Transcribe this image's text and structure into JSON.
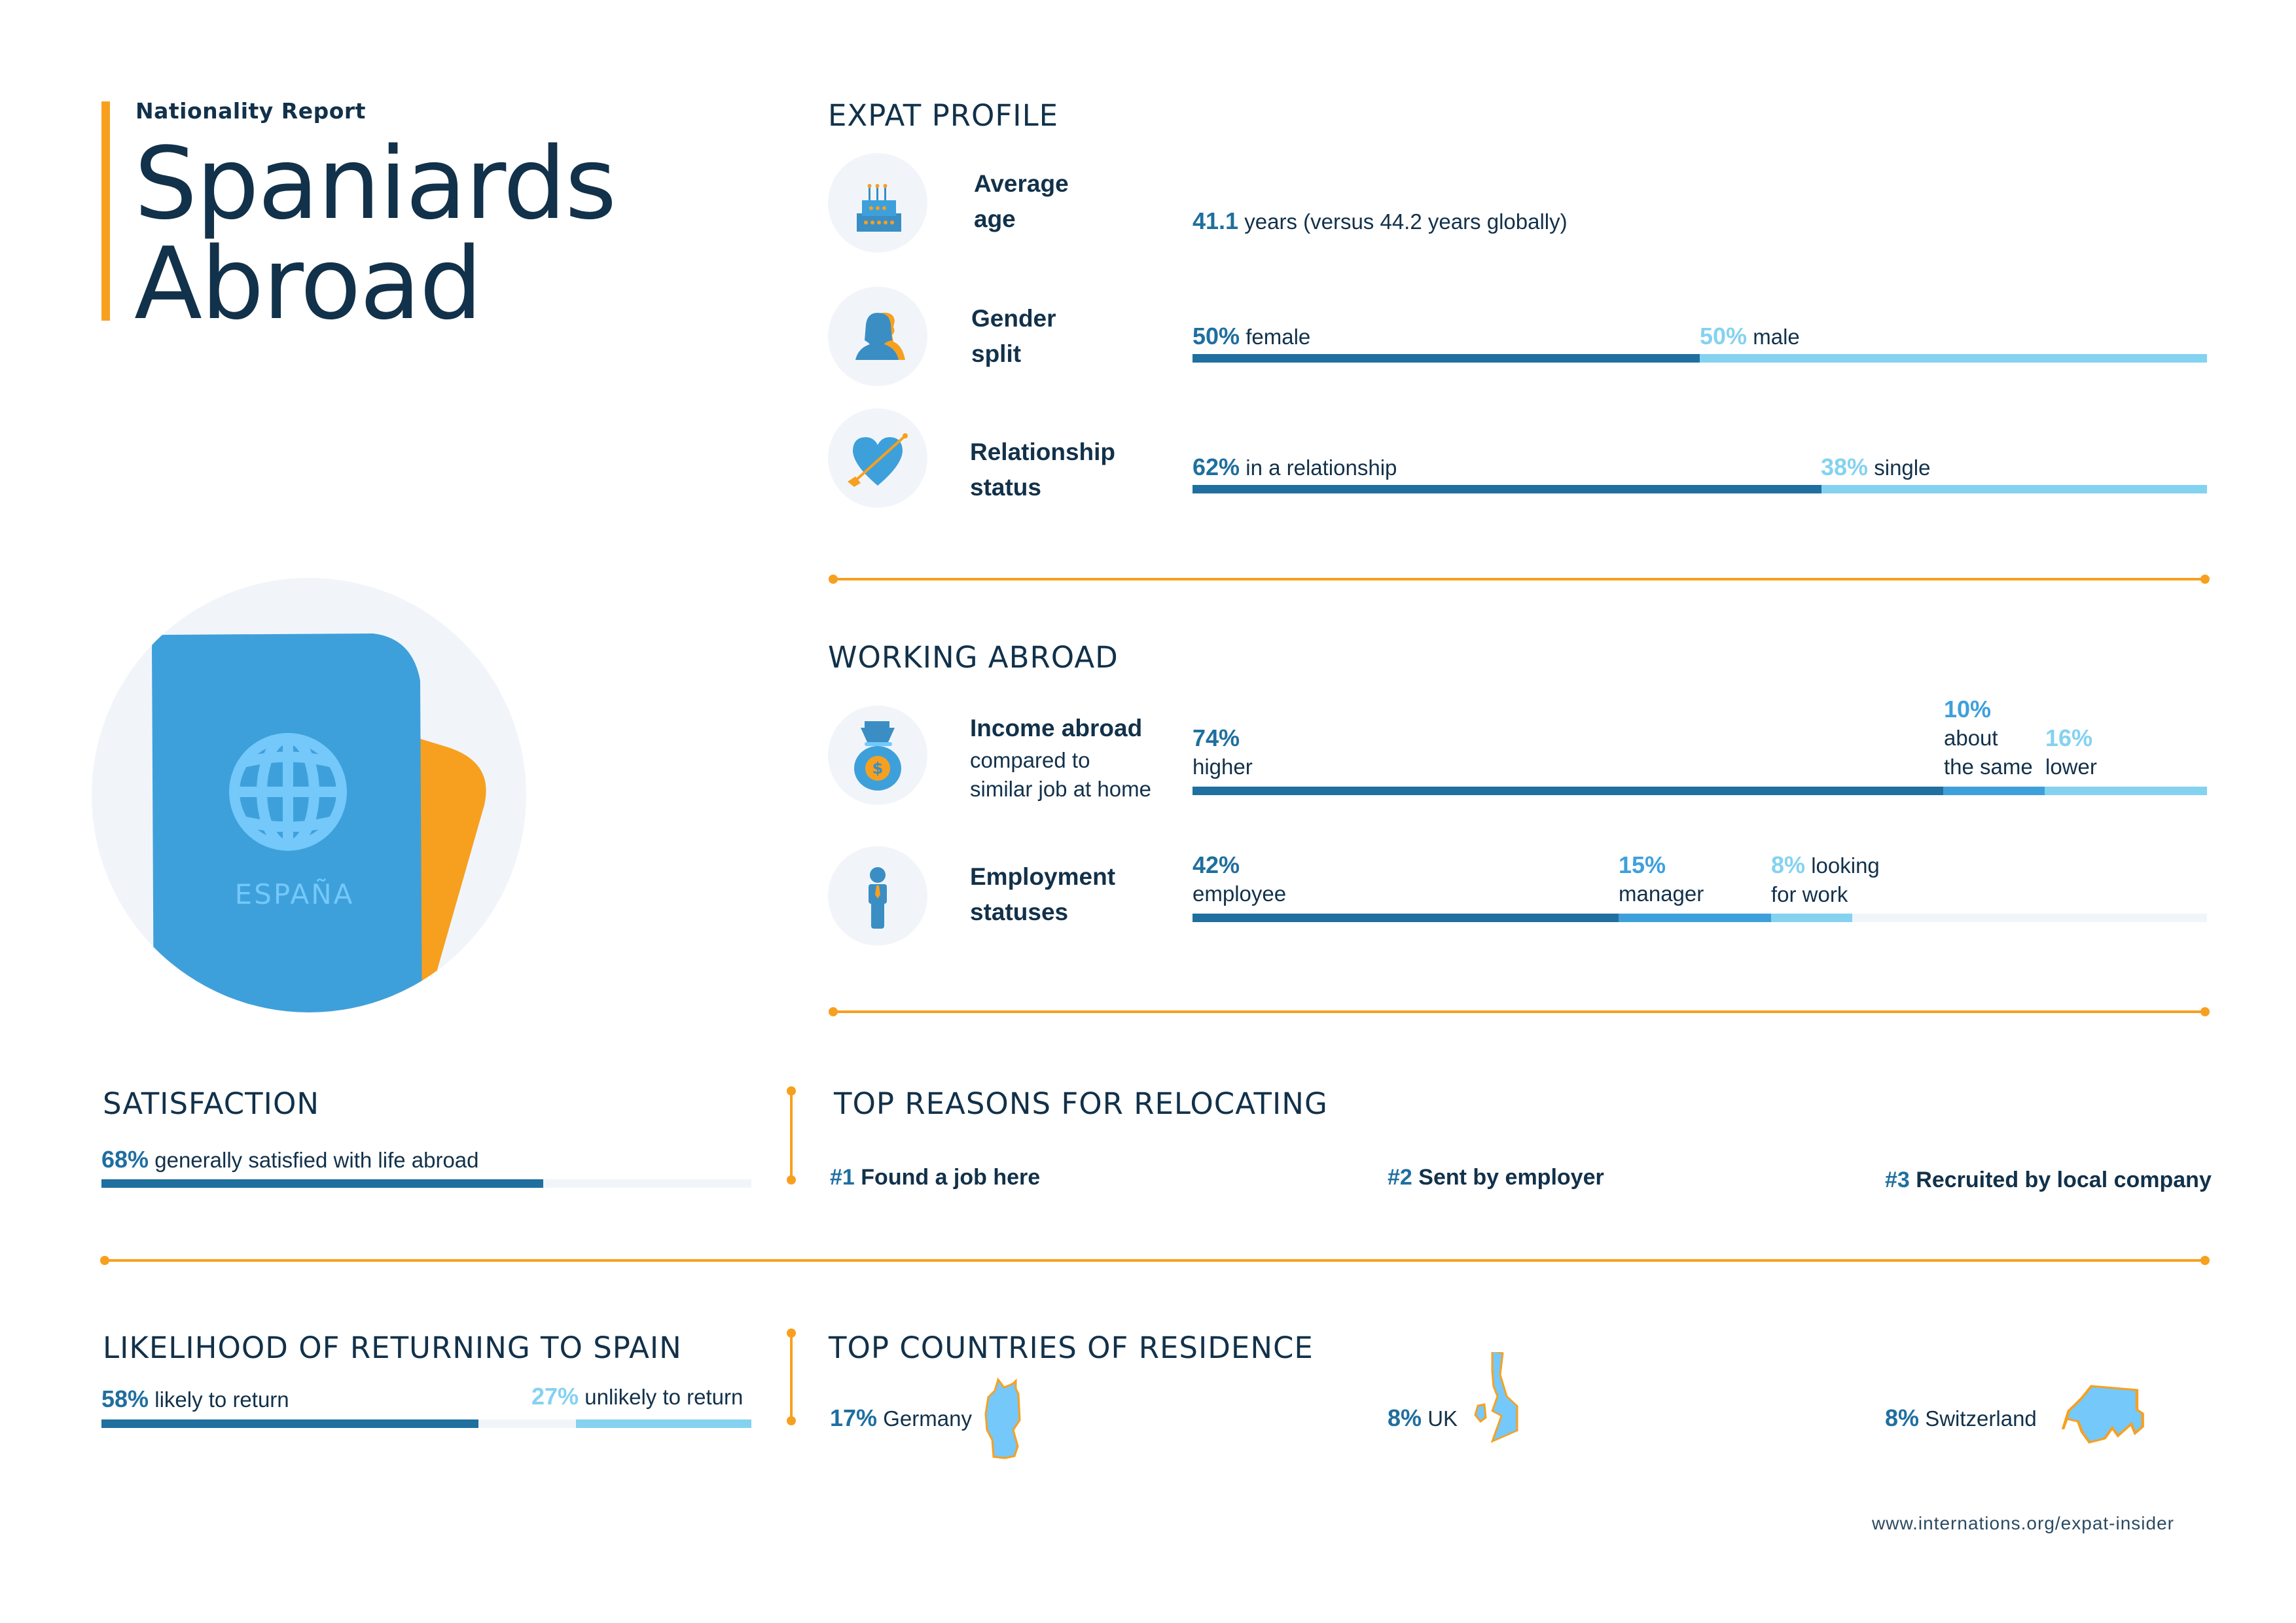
{
  "header": {
    "kicker": "Nationality Report",
    "title_line1": "Spaniards",
    "title_line2": "Abroad"
  },
  "passport": {
    "label": "ESPAÑA",
    "icon": "passport-globe-icon"
  },
  "colors": {
    "navy": "#12314a",
    "dark_blue": "#1f6f9f",
    "mid_blue": "#3ea0db",
    "light_blue": "#84d2f0",
    "orange": "#f7a01f",
    "track": "#f1f5fa"
  },
  "expat_profile": {
    "heading": "EXPAT PROFILE",
    "average_age": {
      "icon": "birthday-cake-icon",
      "label_line1": "Average",
      "label_line2": "age",
      "value": "41.1",
      "text": "years (versus 44.2 years globally)"
    },
    "gender_split": {
      "icon": "gender-people-icon",
      "label_line1": "Gender",
      "label_line2": "split",
      "segments": [
        {
          "value": "50%",
          "label": "female",
          "percent": 50
        },
        {
          "value": "50%",
          "label": "male",
          "percent": 50
        }
      ]
    },
    "relationship_status": {
      "icon": "heart-arrow-icon",
      "label_line1": "Relationship",
      "label_line2": "status",
      "segments": [
        {
          "value": "62%",
          "label": "in a relationship",
          "percent": 62
        },
        {
          "value": "38%",
          "label": "single",
          "percent": 38
        }
      ]
    }
  },
  "working_abroad": {
    "heading": "WORKING ABROAD",
    "income": {
      "icon": "money-bag-icon",
      "label": "Income abroad",
      "sub_line1": "compared to",
      "sub_line2": "similar job at home",
      "segments": [
        {
          "value": "74%",
          "label": "higher",
          "percent": 74
        },
        {
          "value": "10%",
          "label_line1": "about",
          "label_line2": "the same",
          "percent": 10
        },
        {
          "value": "16%",
          "label": "lower",
          "percent": 16
        }
      ]
    },
    "employment": {
      "icon": "employee-tie-icon",
      "label_line1": "Employment",
      "label_line2": "statuses",
      "segments": [
        {
          "value": "42%",
          "label": "employee",
          "percent": 42
        },
        {
          "value": "15%",
          "label": "manager",
          "percent": 15
        },
        {
          "value": "8%",
          "label_line1": "looking",
          "label_line2": "for work",
          "percent": 8
        }
      ]
    }
  },
  "satisfaction": {
    "heading": "SATISFACTION",
    "value": "68%",
    "text": "generally satisfied with life abroad",
    "percent": 68
  },
  "top_reasons": {
    "heading": "TOP REASONS FOR RELOCATING",
    "items": [
      {
        "rank": "#1",
        "label": "Found a job here"
      },
      {
        "rank": "#2",
        "label": "Sent by employer"
      },
      {
        "rank": "#3",
        "label": "Recruited by local company"
      }
    ]
  },
  "returning": {
    "heading": "LIKELIHOOD OF RETURNING TO SPAIN",
    "likely": {
      "value": "58%",
      "label": "likely to return",
      "percent": 58
    },
    "unlikely": {
      "value": "27%",
      "label": "unlikely to return",
      "percent": 27
    }
  },
  "top_countries": {
    "heading": "TOP COUNTRIES OF RESIDENCE",
    "items": [
      {
        "value": "17%",
        "country": "Germany",
        "icon": "germany-map-icon"
      },
      {
        "value": "8%",
        "country": "UK",
        "icon": "uk-map-icon"
      },
      {
        "value": "8%",
        "country": "Switzerland",
        "icon": "switzerland-map-icon"
      }
    ]
  },
  "footer": {
    "url": "www.internations.org/expat-insider"
  }
}
